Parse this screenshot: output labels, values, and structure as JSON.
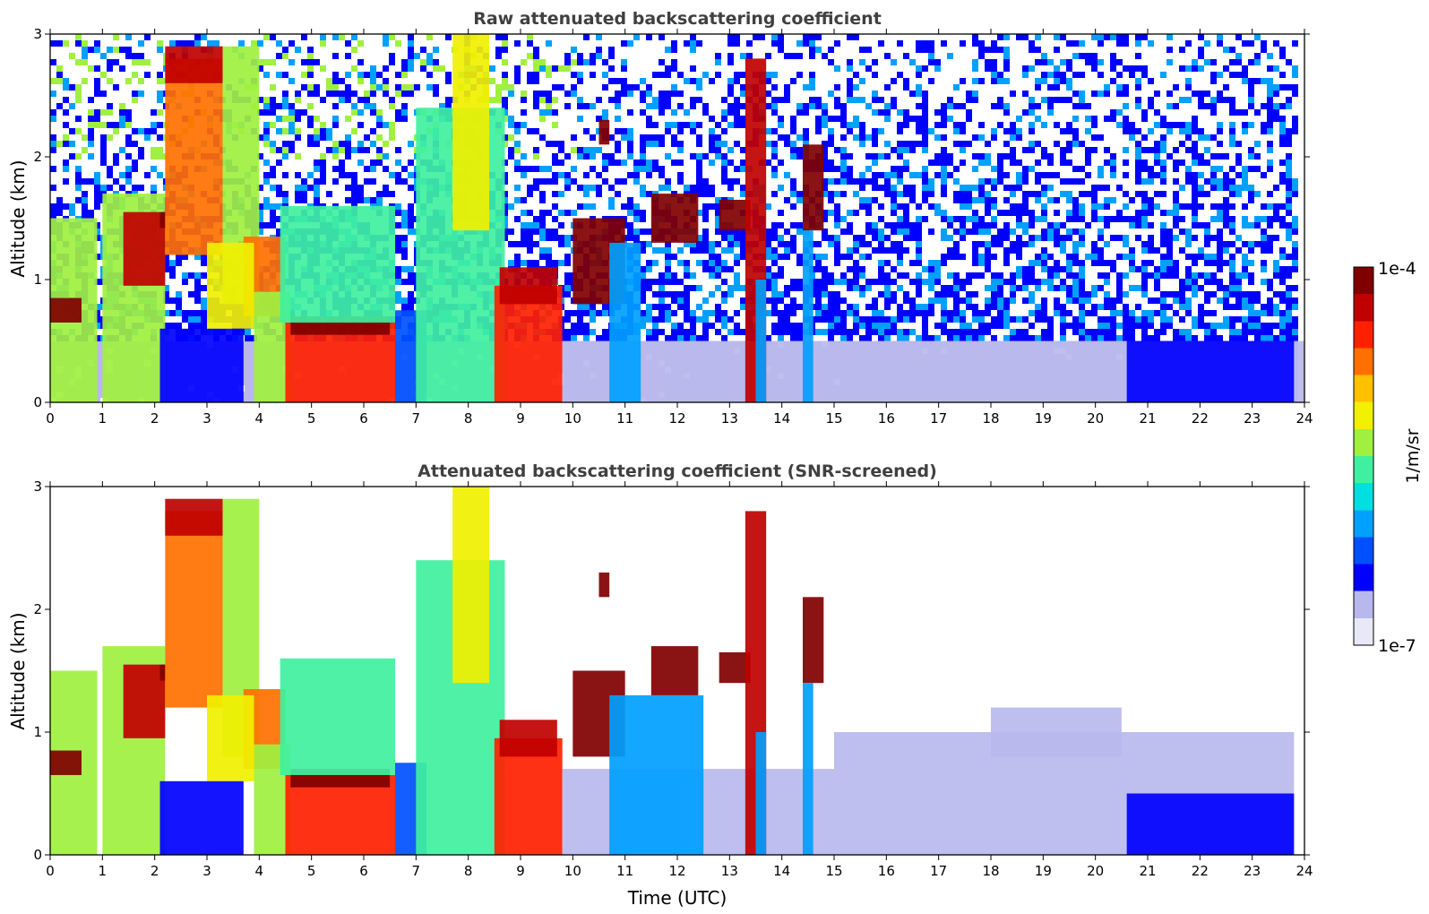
{
  "chart_data": [
    {
      "type": "heatmap",
      "title": "Raw attenuated backscattering coefficient",
      "xlabel": "",
      "ylabel": "Altitude (km)",
      "xlim": [
        0,
        24
      ],
      "ylim": [
        0,
        3
      ],
      "xticks": [
        0,
        1,
        2,
        3,
        4,
        5,
        6,
        7,
        8,
        9,
        10,
        11,
        12,
        13,
        14,
        15,
        16,
        17,
        18,
        19,
        20,
        21,
        22,
        23,
        24
      ],
      "yticks": [
        0,
        1,
        2,
        3
      ],
      "data_end_time": 23.8,
      "screened": false,
      "features": [
        {
          "t0": 0.0,
          "t1": 0.9,
          "z0": 0.0,
          "z1": 1.5,
          "level": 0.55
        },
        {
          "t0": 0.0,
          "t1": 0.6,
          "z0": 0.65,
          "z1": 0.85,
          "level": 0.95
        },
        {
          "t0": 1.0,
          "t1": 2.2,
          "z0": 0.0,
          "z1": 1.7,
          "level": 0.5
        },
        {
          "t0": 1.4,
          "t1": 2.2,
          "z0": 0.95,
          "z1": 1.55,
          "level": 0.92
        },
        {
          "t0": 2.1,
          "t1": 2.2,
          "z0": 1.42,
          "z1": 1.55,
          "level": 1.0
        },
        {
          "t0": 2.2,
          "t1": 3.3,
          "z0": 1.2,
          "z1": 2.8,
          "level": 0.78
        },
        {
          "t0": 2.2,
          "t1": 3.3,
          "z0": 2.6,
          "z1": 2.9,
          "level": 0.92
        },
        {
          "t0": 3.3,
          "t1": 4.0,
          "z0": 0.8,
          "z1": 2.9,
          "level": 0.55
        },
        {
          "t0": 3.7,
          "t1": 4.5,
          "z0": 0.7,
          "z1": 1.35,
          "level": 0.75
        },
        {
          "t0": 3.0,
          "t1": 3.9,
          "z0": 0.6,
          "z1": 1.3,
          "level": 0.6
        },
        {
          "t0": 2.1,
          "t1": 3.7,
          "z0": 0.0,
          "z1": 0.6,
          "level": 0.18
        },
        {
          "t0": 3.9,
          "t1": 4.6,
          "z0": 0.0,
          "z1": 0.9,
          "level": 0.55
        },
        {
          "t0": 4.5,
          "t1": 6.6,
          "z0": 0.0,
          "z1": 0.65,
          "level": 0.8
        },
        {
          "t0": 4.6,
          "t1": 6.5,
          "z0": 0.55,
          "z1": 0.7,
          "level": 0.93
        },
        {
          "t0": 4.4,
          "t1": 6.6,
          "z0": 0.65,
          "z1": 1.6,
          "level": 0.45
        },
        {
          "t0": 6.6,
          "t1": 7.2,
          "z0": 0.0,
          "z1": 0.75,
          "level": 0.25
        },
        {
          "t0": 7.0,
          "t1": 8.7,
          "z0": 0.0,
          "z1": 2.4,
          "level": 0.45
        },
        {
          "t0": 7.7,
          "t1": 8.4,
          "z0": 1.4,
          "z1": 3.0,
          "level": 0.6
        },
        {
          "t0": 8.5,
          "t1": 9.8,
          "z0": 0.0,
          "z1": 0.95,
          "level": 0.8
        },
        {
          "t0": 8.6,
          "t1": 9.7,
          "z0": 0.8,
          "z1": 1.1,
          "level": 0.9
        },
        {
          "t0": 9.8,
          "t1": 24.0,
          "z0": 0.0,
          "z1": 0.5,
          "level": 0.13
        },
        {
          "t0": 10.0,
          "t1": 11.0,
          "z0": 0.8,
          "z1": 1.5,
          "level": 0.93
        },
        {
          "t0": 10.7,
          "t1": 11.3,
          "z0": 0.0,
          "z1": 1.3,
          "level": 0.35
        },
        {
          "t0": 11.5,
          "t1": 12.4,
          "z0": 1.3,
          "z1": 1.7,
          "level": 0.95
        },
        {
          "t0": 12.8,
          "t1": 13.4,
          "z0": 1.4,
          "z1": 1.65,
          "level": 0.93
        },
        {
          "t0": 13.3,
          "t1": 13.7,
          "z0": 0.0,
          "z1": 2.8,
          "level": 0.88
        },
        {
          "t0": 13.5,
          "t1": 13.7,
          "z0": 0.0,
          "z1": 1.0,
          "level": 0.35
        },
        {
          "t0": 14.4,
          "t1": 14.8,
          "z0": 1.4,
          "z1": 2.1,
          "level": 0.93
        },
        {
          "t0": 14.4,
          "t1": 14.6,
          "z0": 0.0,
          "z1": 1.4,
          "level": 0.35
        },
        {
          "t0": 20.6,
          "t1": 23.8,
          "z0": 0.0,
          "z1": 0.5,
          "level": 0.2
        },
        {
          "t0": 10.5,
          "t1": 10.7,
          "z0": 2.1,
          "z1": 2.3,
          "level": 0.98
        }
      ]
    },
    {
      "type": "heatmap",
      "title": "Attenuated backscattering coefficient (SNR-screened)",
      "xlabel": "Time (UTC)",
      "ylabel": "Altitude (km)",
      "xlim": [
        0,
        24
      ],
      "ylim": [
        0,
        3
      ],
      "xticks": [
        0,
        1,
        2,
        3,
        4,
        5,
        6,
        7,
        8,
        9,
        10,
        11,
        12,
        13,
        14,
        15,
        16,
        17,
        18,
        19,
        20,
        21,
        22,
        23,
        24
      ],
      "yticks": [
        0,
        1,
        2,
        3
      ],
      "data_end_time": 23.8,
      "screened": true,
      "features": [
        {
          "t0": 0.0,
          "t1": 0.9,
          "z0": 0.0,
          "z1": 1.5,
          "level": 0.55
        },
        {
          "t0": 0.0,
          "t1": 0.6,
          "z0": 0.65,
          "z1": 0.85,
          "level": 0.95
        },
        {
          "t0": 1.0,
          "t1": 2.2,
          "z0": 0.0,
          "z1": 1.7,
          "level": 0.5
        },
        {
          "t0": 1.4,
          "t1": 2.2,
          "z0": 0.95,
          "z1": 1.55,
          "level": 0.92
        },
        {
          "t0": 2.1,
          "t1": 2.2,
          "z0": 1.42,
          "z1": 1.55,
          "level": 1.0
        },
        {
          "t0": 2.2,
          "t1": 3.3,
          "z0": 1.2,
          "z1": 2.8,
          "level": 0.78
        },
        {
          "t0": 2.2,
          "t1": 3.3,
          "z0": 2.6,
          "z1": 2.9,
          "level": 0.92
        },
        {
          "t0": 3.3,
          "t1": 4.0,
          "z0": 0.8,
          "z1": 2.9,
          "level": 0.55
        },
        {
          "t0": 3.7,
          "t1": 4.5,
          "z0": 0.7,
          "z1": 1.35,
          "level": 0.75
        },
        {
          "t0": 3.0,
          "t1": 3.9,
          "z0": 0.6,
          "z1": 1.3,
          "level": 0.6
        },
        {
          "t0": 2.1,
          "t1": 3.7,
          "z0": 0.0,
          "z1": 0.6,
          "level": 0.18
        },
        {
          "t0": 3.9,
          "t1": 4.6,
          "z0": 0.0,
          "z1": 0.9,
          "level": 0.55
        },
        {
          "t0": 4.5,
          "t1": 6.6,
          "z0": 0.0,
          "z1": 0.65,
          "level": 0.8
        },
        {
          "t0": 4.6,
          "t1": 6.5,
          "z0": 0.55,
          "z1": 0.7,
          "level": 0.93
        },
        {
          "t0": 4.4,
          "t1": 6.6,
          "z0": 0.65,
          "z1": 1.6,
          "level": 0.45
        },
        {
          "t0": 6.6,
          "t1": 7.2,
          "z0": 0.0,
          "z1": 0.75,
          "level": 0.25
        },
        {
          "t0": 7.0,
          "t1": 8.7,
          "z0": 0.0,
          "z1": 2.4,
          "level": 0.45
        },
        {
          "t0": 7.7,
          "t1": 8.4,
          "z0": 1.4,
          "z1": 3.0,
          "level": 0.6
        },
        {
          "t0": 8.5,
          "t1": 9.8,
          "z0": 0.0,
          "z1": 0.95,
          "level": 0.8
        },
        {
          "t0": 8.6,
          "t1": 9.7,
          "z0": 0.8,
          "z1": 1.1,
          "level": 0.9
        },
        {
          "t0": 9.8,
          "t1": 15.0,
          "z0": 0.0,
          "z1": 0.7,
          "level": 0.13
        },
        {
          "t0": 15.0,
          "t1": 23.8,
          "z0": 0.0,
          "z1": 1.0,
          "level": 0.13
        },
        {
          "t0": 18.0,
          "t1": 20.5,
          "z0": 0.8,
          "z1": 1.2,
          "level": 0.12
        },
        {
          "t0": 10.0,
          "t1": 11.0,
          "z0": 0.8,
          "z1": 1.5,
          "level": 0.93
        },
        {
          "t0": 10.7,
          "t1": 12.5,
          "z0": 0.0,
          "z1": 1.3,
          "level": 0.35
        },
        {
          "t0": 11.5,
          "t1": 12.4,
          "z0": 1.3,
          "z1": 1.7,
          "level": 0.95
        },
        {
          "t0": 12.8,
          "t1": 13.4,
          "z0": 1.4,
          "z1": 1.65,
          "level": 0.93
        },
        {
          "t0": 13.3,
          "t1": 13.7,
          "z0": 0.0,
          "z1": 2.8,
          "level": 0.88
        },
        {
          "t0": 13.5,
          "t1": 13.7,
          "z0": 0.0,
          "z1": 1.0,
          "level": 0.35
        },
        {
          "t0": 14.4,
          "t1": 14.8,
          "z0": 1.4,
          "z1": 2.1,
          "level": 0.93
        },
        {
          "t0": 14.4,
          "t1": 14.6,
          "z0": 0.0,
          "z1": 1.4,
          "level": 0.35
        },
        {
          "t0": 20.6,
          "t1": 23.8,
          "z0": 0.0,
          "z1": 0.5,
          "level": 0.2
        },
        {
          "t0": 10.5,
          "t1": 10.7,
          "z0": 2.1,
          "z1": 2.3,
          "level": 0.98
        }
      ]
    }
  ],
  "colorbar": {
    "label": "1/m/sr",
    "max_label": "1e-4",
    "min_label": "1e-7",
    "colors": [
      "#e8e8f8",
      "#b8b8ee",
      "#0000ff",
      "#0050ff",
      "#00a0ff",
      "#00e0e0",
      "#40f0a0",
      "#a0f040",
      "#f0f000",
      "#ffc000",
      "#ff7000",
      "#ff2000",
      "#c00000",
      "#800000"
    ]
  }
}
